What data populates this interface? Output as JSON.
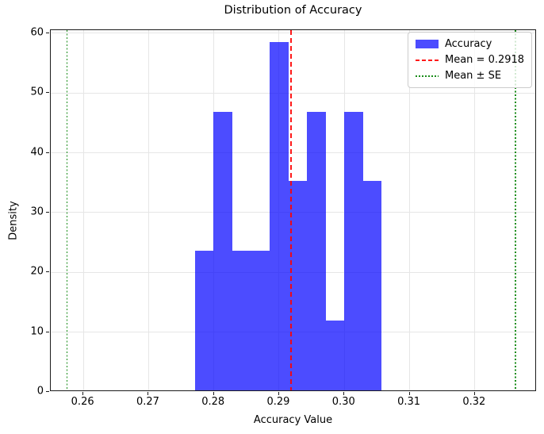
{
  "chart_data": {
    "type": "bar",
    "subtype": "histogram-density",
    "title": "Distribution of Accuracy",
    "xlabel": "Accuracy Value",
    "ylabel": "Density",
    "xlim": [
      0.255,
      0.3295
    ],
    "ylim": [
      0,
      60.5
    ],
    "grid": true,
    "x_ticks": [
      0.26,
      0.27,
      0.28,
      0.29,
      0.3,
      0.31,
      0.32
    ],
    "x_tick_labels": [
      "0.26",
      "0.27",
      "0.28",
      "0.29",
      "0.30",
      "0.31",
      "0.32"
    ],
    "y_ticks": [
      0,
      10,
      20,
      30,
      40,
      50,
      60
    ],
    "y_tick_labels": [
      "0",
      "10",
      "20",
      "30",
      "40",
      "50",
      "60"
    ],
    "bins": {
      "start": 0.2771,
      "bin_width": 0.00286,
      "densities": [
        23.3,
        46.6,
        23.3,
        23.3,
        58.3,
        35.0,
        46.6,
        11.7,
        46.6,
        35.0
      ],
      "counts": [
        2,
        4,
        2,
        2,
        5,
        3,
        4,
        1,
        4,
        3
      ]
    },
    "mean_line": {
      "value": 0.2918,
      "color": "#ff0000",
      "style": "dashed"
    },
    "se_lines": {
      "values": [
        0.2575,
        0.3262
      ],
      "color": "#008000",
      "style": "dotted"
    },
    "colors": {
      "bar": "#0000ff",
      "bar_opacity": 0.7,
      "grid": "#e6e6e6",
      "spine": "#1a1a1a",
      "background": "#ffffff"
    },
    "legend": {
      "position": "upper-right",
      "items": [
        {
          "swatch": "patch",
          "color": "#0000ff",
          "label": "Accuracy"
        },
        {
          "swatch": "dashed-line",
          "color": "#ff0000",
          "label": "Mean = 0.2918"
        },
        {
          "swatch": "dotted-line",
          "color": "#008000",
          "label": "Mean ± SE"
        }
      ]
    }
  }
}
